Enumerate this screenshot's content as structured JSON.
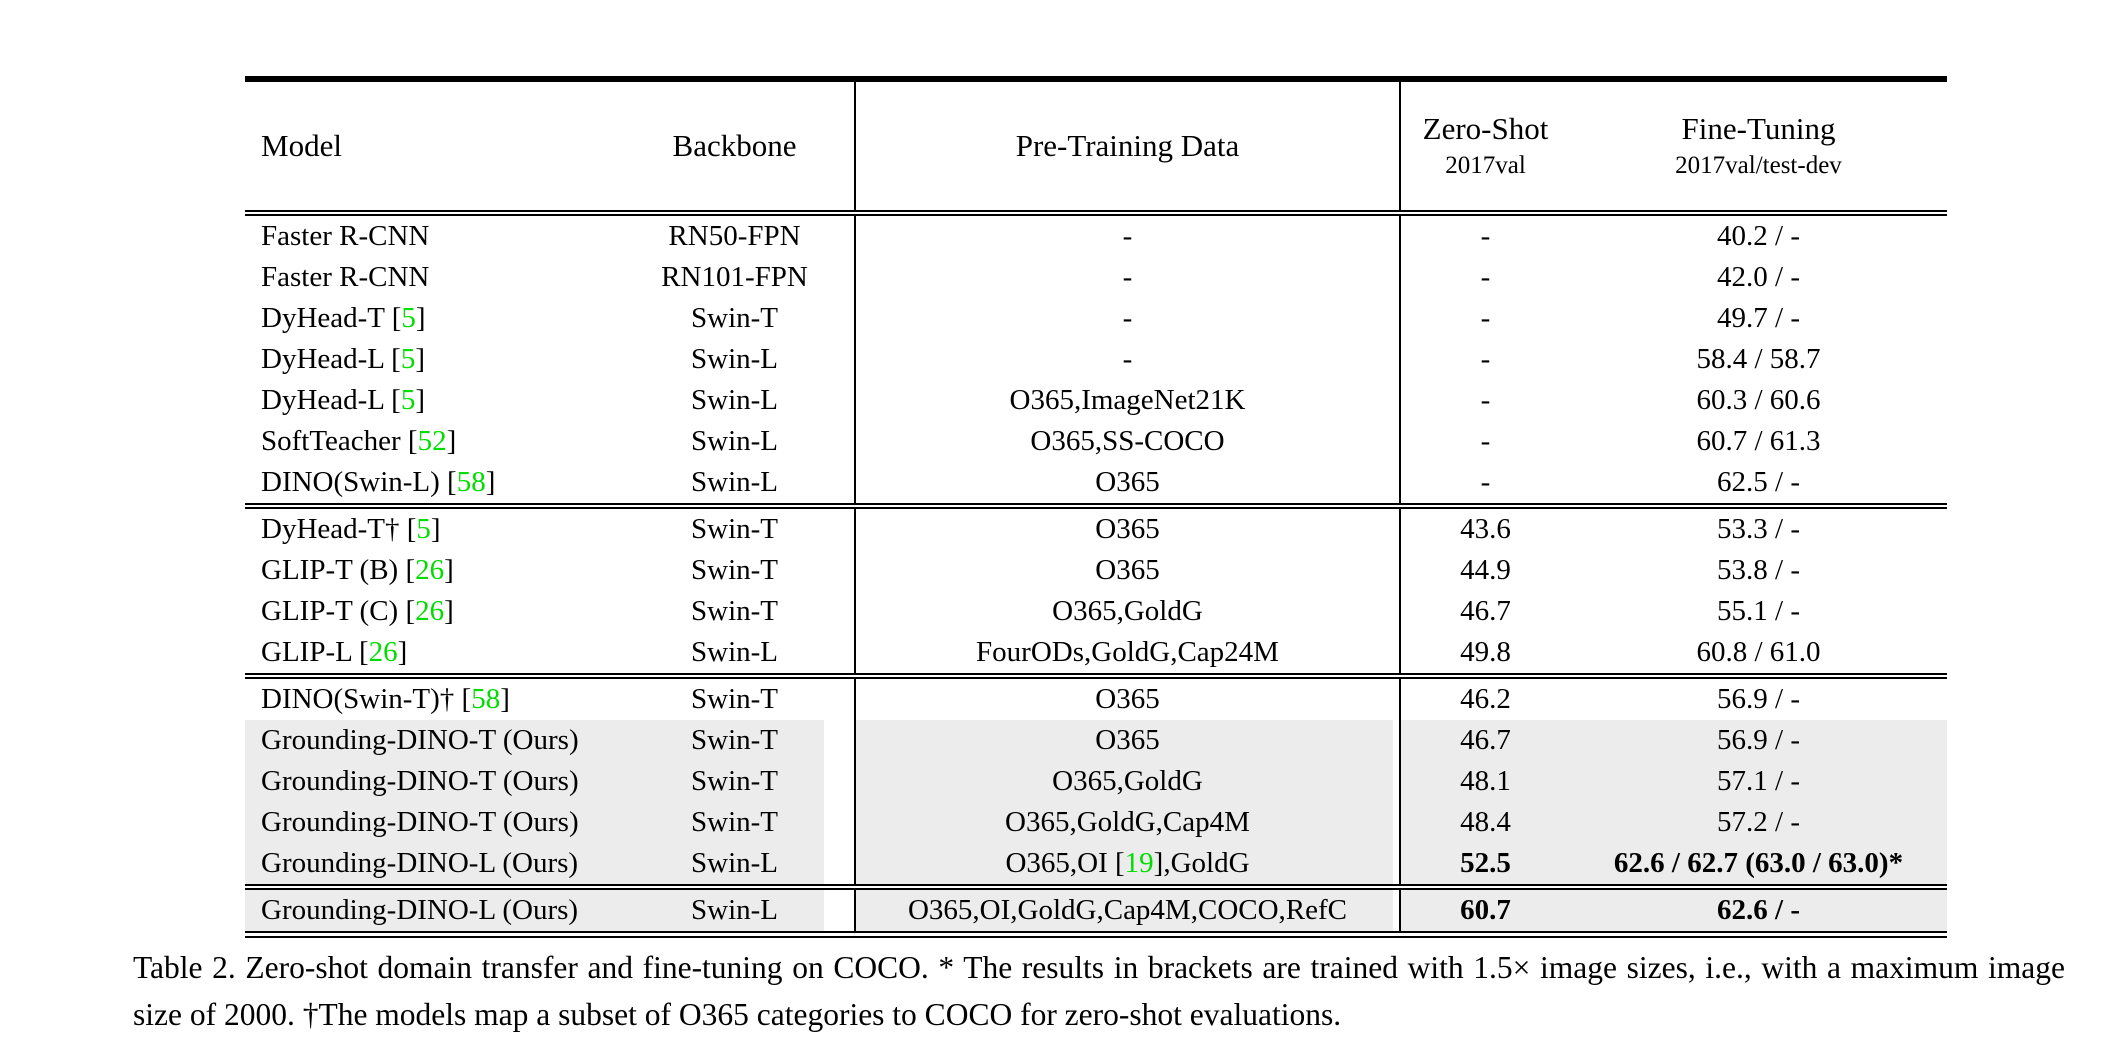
{
  "colors": {
    "citation_green": "#00dd00",
    "highlight_gray": "#ececec",
    "rule_black": "#000000"
  },
  "table": {
    "header": {
      "model": "Model",
      "backbone": "Backbone",
      "pretraining": "Pre-Training Data",
      "zeroshot_line1": "Zero-Shot",
      "zeroshot_line2": "2017val",
      "finetuning_line1": "Fine-Tuning",
      "finetuning_line2": "2017val/test-dev"
    },
    "sections": [
      {
        "rows": [
          {
            "model": "Faster R-CNN",
            "backbone": "RN50-FPN",
            "pretrain": "-",
            "zeroshot": "-",
            "finetune": "40.2 / -",
            "highlight": false,
            "bold": false
          },
          {
            "model": "Faster R-CNN",
            "backbone": "RN101-FPN",
            "pretrain": "-",
            "zeroshot": "-",
            "finetune": "42.0 / -",
            "highlight": false,
            "bold": false
          },
          {
            "model": "DyHead-T [5]",
            "backbone": "Swin-T",
            "pretrain": "-",
            "zeroshot": "-",
            "finetune": "49.7 / -",
            "highlight": false,
            "bold": false
          },
          {
            "model": "DyHead-L [5]",
            "backbone": "Swin-L",
            "pretrain": "-",
            "zeroshot": "-",
            "finetune": "58.4 / 58.7",
            "highlight": false,
            "bold": false
          },
          {
            "model": "DyHead-L [5]",
            "backbone": "Swin-L",
            "pretrain": "O365,ImageNet21K",
            "zeroshot": "-",
            "finetune": "60.3 / 60.6",
            "highlight": false,
            "bold": false
          },
          {
            "model": "SoftTeacher [52]",
            "backbone": "Swin-L",
            "pretrain": "O365,SS-COCO",
            "zeroshot": "-",
            "finetune": "60.7 / 61.3",
            "highlight": false,
            "bold": false
          },
          {
            "model": "DINO(Swin-L) [58]",
            "backbone": "Swin-L",
            "pretrain": "O365",
            "zeroshot": "-",
            "finetune": "62.5 / -",
            "highlight": false,
            "bold": false
          }
        ]
      },
      {
        "rows": [
          {
            "model": "DyHead-T† [5]",
            "backbone": "Swin-T",
            "pretrain": "O365",
            "zeroshot": "43.6",
            "finetune": "53.3 / -",
            "highlight": false,
            "bold": false
          },
          {
            "model": "GLIP-T (B) [26]",
            "backbone": "Swin-T",
            "pretrain": "O365",
            "zeroshot": "44.9",
            "finetune": "53.8 / -",
            "highlight": false,
            "bold": false
          },
          {
            "model": "GLIP-T (C) [26]",
            "backbone": "Swin-T",
            "pretrain": "O365,GoldG",
            "zeroshot": "46.7",
            "finetune": "55.1 / -",
            "highlight": false,
            "bold": false
          },
          {
            "model": "GLIP-L [26]",
            "backbone": "Swin-L",
            "pretrain": "FourODs,GoldG,Cap24M",
            "zeroshot": "49.8",
            "finetune": "60.8 / 61.0",
            "highlight": false,
            "bold": false
          }
        ]
      },
      {
        "rows": [
          {
            "model": "DINO(Swin-T)† [58]",
            "backbone": "Swin-T",
            "pretrain": "O365",
            "zeroshot": "46.2",
            "finetune": "56.9 / -",
            "highlight": false,
            "bold": false
          },
          {
            "model": "Grounding-DINO-T (Ours)",
            "backbone": "Swin-T",
            "pretrain": "O365",
            "zeroshot": "46.7",
            "finetune": "56.9 / -",
            "highlight": true,
            "bold": false
          },
          {
            "model": "Grounding-DINO-T (Ours)",
            "backbone": "Swin-T",
            "pretrain": "O365,GoldG",
            "zeroshot": "48.1",
            "finetune": "57.1 / -",
            "highlight": true,
            "bold": false
          },
          {
            "model": "Grounding-DINO-T (Ours)",
            "backbone": "Swin-T",
            "pretrain": "O365,GoldG,Cap4M",
            "zeroshot": "48.4",
            "finetune": "57.2 / -",
            "highlight": true,
            "bold": false
          },
          {
            "model": "Grounding-DINO-L (Ours)",
            "backbone": "Swin-L",
            "pretrain": "O365,OI [19],GoldG",
            "zeroshot": "52.5",
            "finetune": "62.6 / 62.7 (63.0 / 63.0)*",
            "highlight": true,
            "bold": true
          }
        ]
      },
      {
        "rows": [
          {
            "model": "Grounding-DINO-L (Ours)",
            "backbone": "Swin-L",
            "pretrain": "O365,OI,GoldG,Cap4M,COCO,RefC",
            "zeroshot": "60.7",
            "finetune": "62.6 / -",
            "highlight": true,
            "bold": true
          }
        ]
      }
    ]
  },
  "caption": {
    "text": "Table 2.  Zero-shot domain transfer and fine-tuning on COCO. * The results in brackets are trained with 1.5× image sizes, i.e., with a maximum image size of 2000. †The models map a subset of O365 categories to COCO for zero-shot evaluations."
  }
}
